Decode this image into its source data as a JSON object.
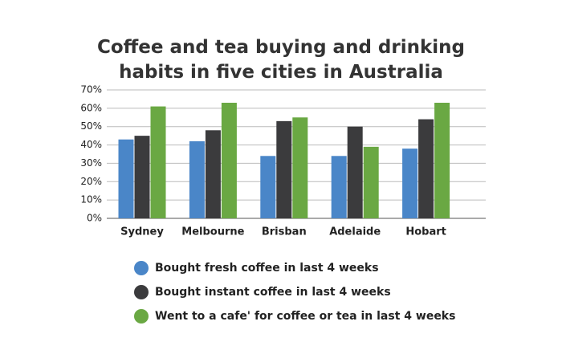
{
  "chart_data": {
    "type": "bar",
    "title": "Coffee and tea buying and drinking habits in five cities in Australia",
    "categories": [
      "Sydney",
      "Melbourne",
      "Brisban",
      "Adelaide",
      "Hobart"
    ],
    "series": [
      {
        "name": "Bought fresh coffee in last 4 weeks",
        "color": "#4a86c8",
        "values": [
          43,
          42,
          34,
          34,
          38
        ]
      },
      {
        "name": "Bought instant coffee in last 4 weeks",
        "color": "#3b3b3d",
        "values": [
          45,
          48,
          53,
          50,
          54
        ]
      },
      {
        "name": "Went to a cafe' for coffee or tea in last 4 weeks",
        "color": "#6aa843",
        "values": [
          61,
          63,
          55,
          39,
          63
        ]
      }
    ],
    "ylim": [
      0,
      70
    ],
    "yticks": [
      {
        "value": 0,
        "label": "0%"
      },
      {
        "value": 10,
        "label": "10%"
      },
      {
        "value": 20,
        "label": "20%"
      },
      {
        "value": 30,
        "label": "30%"
      },
      {
        "value": 40,
        "label": "40%"
      },
      {
        "value": 50,
        "label": "50%"
      },
      {
        "value": 60,
        "label": "60%"
      },
      {
        "value": 70,
        "label": "70%"
      }
    ],
    "grid": true
  }
}
